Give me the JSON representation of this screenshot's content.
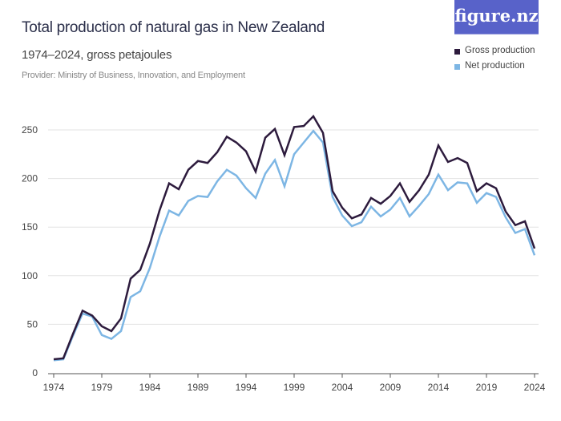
{
  "title": "Total production of natural gas in New Zealand",
  "subtitle": "1974–2024, gross petajoules",
  "provider": "Provider: Ministry of Business, Innovation, and Employment",
  "logo": "figure.nz",
  "chart_data": {
    "type": "line",
    "title": "Total production of natural gas in New Zealand",
    "xlabel": "",
    "ylabel": "",
    "xlim": [
      1974,
      2024
    ],
    "ylim": [
      0,
      260
    ],
    "x_ticks": [
      1974,
      1979,
      1984,
      1989,
      1994,
      1999,
      2004,
      2009,
      2014,
      2019,
      2024
    ],
    "y_ticks": [
      0,
      50,
      100,
      150,
      200,
      250
    ],
    "grid": true,
    "legend": "top-right",
    "x": [
      1974,
      1975,
      1976,
      1977,
      1978,
      1979,
      1980,
      1981,
      1982,
      1983,
      1984,
      1985,
      1986,
      1987,
      1988,
      1989,
      1990,
      1991,
      1992,
      1993,
      1994,
      1995,
      1996,
      1997,
      1998,
      1999,
      2000,
      2001,
      2002,
      2003,
      2004,
      2005,
      2006,
      2007,
      2008,
      2009,
      2010,
      2011,
      2012,
      2013,
      2014,
      2015,
      2016,
      2017,
      2018,
      2019,
      2020,
      2021,
      2022,
      2023,
      2024
    ],
    "series": [
      {
        "name": "Gross production",
        "color": "#2d1b3d",
        "values": [
          14,
          15,
          40,
          64,
          59,
          48,
          43,
          56,
          97,
          106,
          133,
          167,
          195,
          189,
          209,
          218,
          216,
          227,
          243,
          237,
          228,
          207,
          242,
          251,
          224,
          253,
          254,
          264,
          247,
          187,
          170,
          159,
          163,
          180,
          174,
          182,
          195,
          176,
          188,
          204,
          234,
          217,
          221,
          216,
          187,
          195,
          190,
          166,
          152,
          156,
          128
        ]
      },
      {
        "name": "Net production",
        "color": "#7db6e4",
        "values": [
          13,
          14,
          38,
          61,
          58,
          39,
          35,
          43,
          78,
          84,
          108,
          140,
          167,
          162,
          177,
          182,
          181,
          197,
          209,
          203,
          190,
          180,
          205,
          219,
          192,
          225,
          237,
          249,
          237,
          181,
          162,
          151,
          155,
          171,
          161,
          168,
          180,
          161,
          172,
          184,
          204,
          188,
          196,
          195,
          175,
          185,
          181,
          160,
          144,
          148,
          121
        ]
      }
    ]
  }
}
